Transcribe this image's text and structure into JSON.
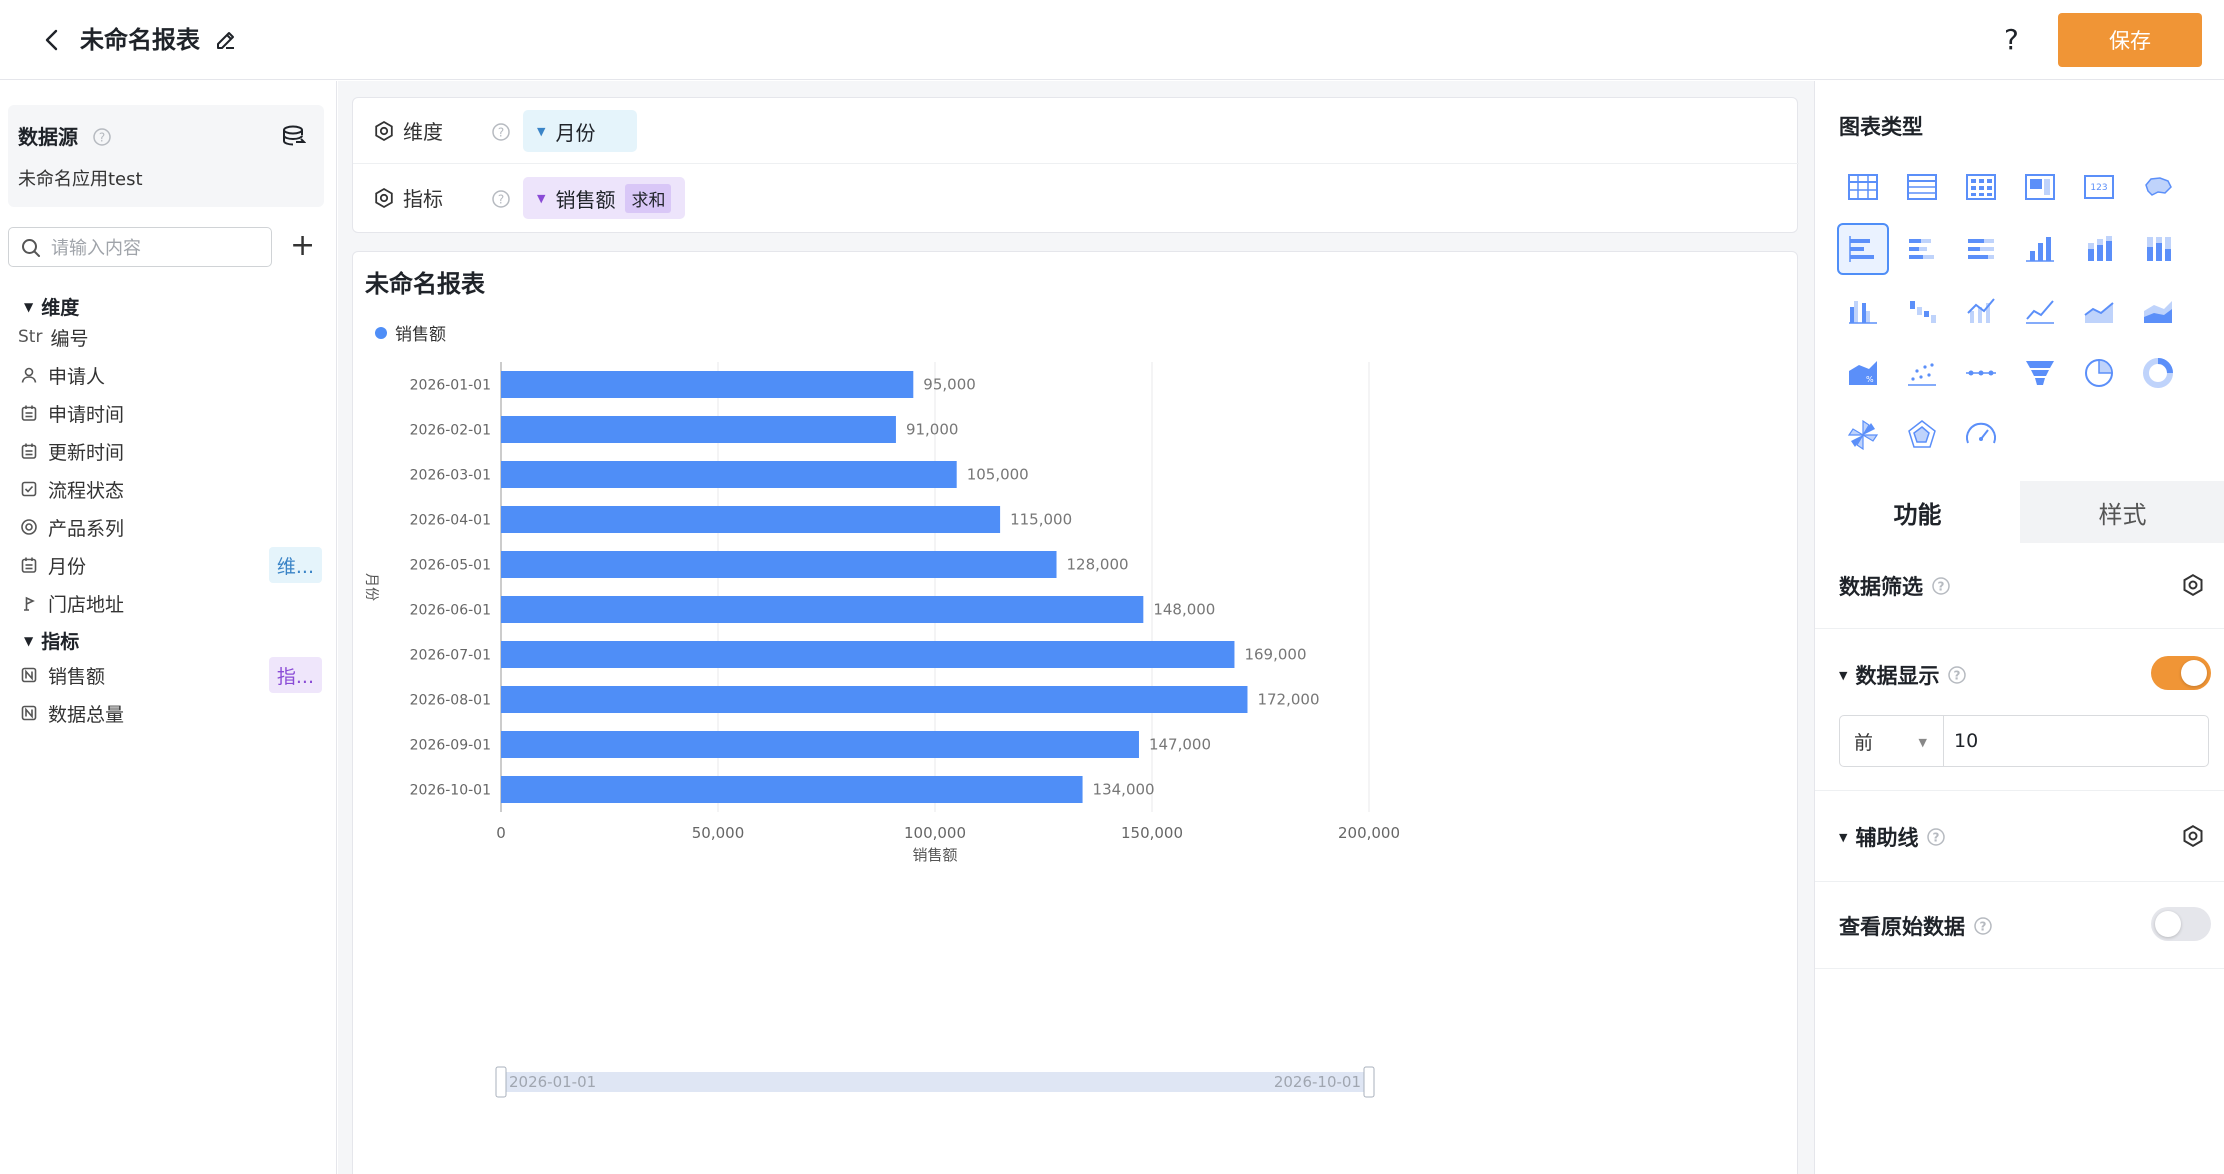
{
  "header": {
    "title": "未命名报表",
    "help": "?",
    "save_label": "保存"
  },
  "sidebar": {
    "datasource_title": "数据源",
    "datasource_app": "未命名应用test",
    "search_placeholder": "请输入内容",
    "add": "+",
    "dim_group": "维度",
    "met_group": "指标",
    "dimension_fields": [
      {
        "icon": "Str",
        "label": "编号",
        "badge": ""
      },
      {
        "icon": "user-icon",
        "label": "申请人",
        "badge": ""
      },
      {
        "icon": "calendar-icon",
        "label": "申请时间",
        "badge": ""
      },
      {
        "icon": "calendar-icon",
        "label": "更新时间",
        "badge": ""
      },
      {
        "icon": "checkbox-icon",
        "label": "流程状态",
        "badge": ""
      },
      {
        "icon": "radio-icon",
        "label": "产品系列",
        "badge": ""
      },
      {
        "icon": "calendar-icon",
        "label": "月份",
        "badge": "维..."
      },
      {
        "icon": "location-icon",
        "label": "门店地址",
        "badge": ""
      }
    ],
    "metric_fields": [
      {
        "icon": "number-icon",
        "label": "销售额",
        "badge": "指..."
      },
      {
        "icon": "number-icon",
        "label": "数据总量",
        "badge": ""
      }
    ]
  },
  "shelf": {
    "dimension_label": "维度",
    "dimension_pill": "月份",
    "metric_label": "指标",
    "metric_pill": "销售额",
    "metric_agg": "求和"
  },
  "chart": {
    "title": "未命名报表",
    "legend": "销售额"
  },
  "chart_data": {
    "type": "bar",
    "orientation": "horizontal",
    "categories": [
      "2026-01-01",
      "2026-02-01",
      "2026-03-01",
      "2026-04-01",
      "2026-05-01",
      "2026-06-01",
      "2026-07-01",
      "2026-08-01",
      "2026-09-01",
      "2026-10-01"
    ],
    "series": [
      {
        "name": "销售额",
        "values": [
          95000,
          91000,
          105000,
          115000,
          128000,
          148000,
          169000,
          172000,
          147000,
          134000
        ],
        "color": "#4f8ef7"
      }
    ],
    "value_labels": [
      "95,000",
      "91,000",
      "105,000",
      "115,000",
      "128,000",
      "148,000",
      "169,000",
      "172,000",
      "147,000",
      "134,000"
    ],
    "xlim": [
      0,
      200000
    ],
    "xticks": [
      "0",
      "50,000",
      "100,000",
      "150,000",
      "200,000"
    ],
    "xlabel": "销售额",
    "ylabel": "月份",
    "grid": true,
    "legend_position": "top-left",
    "slider_start": "2026-01-01",
    "slider_end": "2026-10-01"
  },
  "right_panel": {
    "chart_type_title": "图表类型",
    "chart_types": [
      "table-icon",
      "detail-table-icon",
      "cross-table-icon",
      "indicator-card-icon",
      "number-card-icon",
      "map-icon",
      "bar-icon",
      "stacked-bar-icon",
      "percent-bar-icon",
      "column-icon",
      "stacked-column-icon",
      "percent-column-icon",
      "grouped-column-icon",
      "waterfall-icon",
      "combo-icon",
      "line-icon",
      "area-icon",
      "stacked-area-icon",
      "percent-area-icon",
      "scatter-icon",
      "timeline-icon",
      "funnel-icon",
      "pie-icon",
      "donut-icon",
      "rose-icon",
      "radar-icon",
      "gauge-icon"
    ],
    "selected_type": "bar-icon",
    "tabs": [
      "功能",
      "样式"
    ],
    "data_filter": "数据筛选",
    "data_display": "数据显示",
    "topn_mode": "前",
    "topn_value": "10",
    "aux_line": "辅助线",
    "raw_data": "查看原始数据"
  },
  "colors": {
    "accent": "#f09536",
    "bar": "#4f8ef7",
    "selected": "#4f8ef7"
  }
}
